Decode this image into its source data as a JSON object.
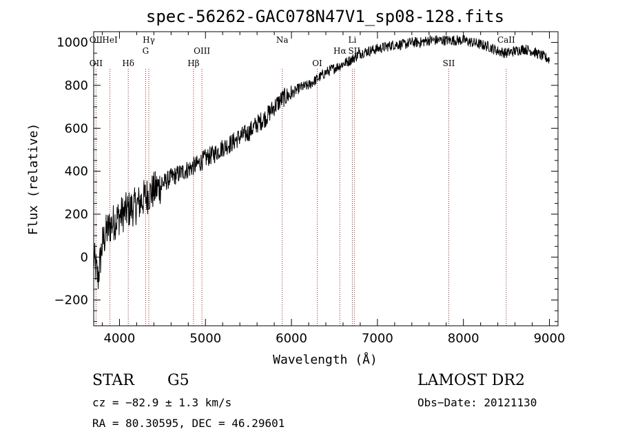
{
  "chart_data": {
    "type": "line",
    "title": "spec-56262-GAC078N47V1_sp08-128.fits",
    "xlabel": "Wavelength (Å)",
    "ylabel": "Flux (relative)",
    "xlim": [
      3700,
      9100
    ],
    "ylim": [
      -320,
      1050
    ],
    "xticks": [
      4000,
      5000,
      6000,
      7000,
      8000,
      9000
    ],
    "yticks": [
      -200,
      0,
      200,
      400,
      600,
      800,
      1000
    ],
    "xtick_labels": [
      "4000",
      "5000",
      "6000",
      "7000",
      "8000",
      "9000"
    ],
    "ytick_labels": [
      "−200",
      "0",
      "200",
      "400",
      "600",
      "800",
      "1000"
    ],
    "series": [
      {
        "name": "spectrum",
        "x": [
          3700,
          3750,
          3800,
          3850,
          3900,
          3950,
          4000,
          4100,
          4200,
          4300,
          4400,
          4500,
          4600,
          4700,
          4800,
          4900,
          5000,
          5100,
          5200,
          5300,
          5400,
          5500,
          5600,
          5700,
          5800,
          5900,
          6000,
          6100,
          6200,
          6300,
          6400,
          6500,
          6600,
          6700,
          6800,
          6900,
          7000,
          7100,
          7200,
          7300,
          7400,
          7500,
          7600,
          7700,
          7800,
          7900,
          8000,
          8100,
          8200,
          8300,
          8400,
          8500,
          8600,
          8700,
          8800,
          8900,
          9000
        ],
        "y": [
          0,
          -100,
          60,
          120,
          150,
          170,
          190,
          220,
          240,
          280,
          310,
          340,
          370,
          390,
          410,
          430,
          460,
          480,
          510,
          530,
          560,
          580,
          620,
          650,
          700,
          740,
          760,
          790,
          800,
          830,
          860,
          880,
          900,
          920,
          950,
          960,
          970,
          980,
          990,
          990,
          1000,
          1000,
          1010,
          1010,
          1010,
          1010,
          1010,
          1000,
          990,
          980,
          960,
          950,
          960,
          970,
          960,
          940,
          920
        ]
      }
    ],
    "spectral_lines": [
      {
        "label": "OII",
        "wavelength": 3727,
        "row": "top"
      },
      {
        "label": "OII",
        "wavelength": 3727,
        "row": "bottom"
      },
      {
        "label": "HeI",
        "wavelength": 3889,
        "row": "top"
      },
      {
        "label": "Hδ",
        "wavelength": 4102,
        "row": "bottom"
      },
      {
        "label": "Hγ",
        "wavelength": 4341,
        "row": "top"
      },
      {
        "label": "G",
        "wavelength": 4304,
        "row": "middle"
      },
      {
        "label": "Hβ",
        "wavelength": 4861,
        "row": "bottom"
      },
      {
        "label": "OIII",
        "wavelength": 4959,
        "row": "middle"
      },
      {
        "label": "Na",
        "wavelength": 5893,
        "row": "top"
      },
      {
        "label": "OI",
        "wavelength": 6300,
        "row": "bottom"
      },
      {
        "label": "Hα",
        "wavelength": 6563,
        "row": "middle"
      },
      {
        "label": "Li",
        "wavelength": 6708,
        "row": "top"
      },
      {
        "label": "SII",
        "wavelength": 6731,
        "row": "middle"
      },
      {
        "label": "SII",
        "wavelength": 7830,
        "row": "bottom"
      },
      {
        "label": "CaII",
        "wavelength": 8498,
        "row": "top"
      }
    ]
  },
  "info": {
    "object_class": "STAR",
    "subclass": "G5",
    "survey": "LAMOST DR2",
    "cz": "cz = −82.9 ± 1.3 km/s",
    "obs_date": "Obs−Date: 20121130",
    "radec": "RA =  80.30595, DEC =  46.29601"
  },
  "colors": {
    "spectrum": "#000000",
    "line_marker": "#8b1a1a",
    "axes": "#000000"
  }
}
